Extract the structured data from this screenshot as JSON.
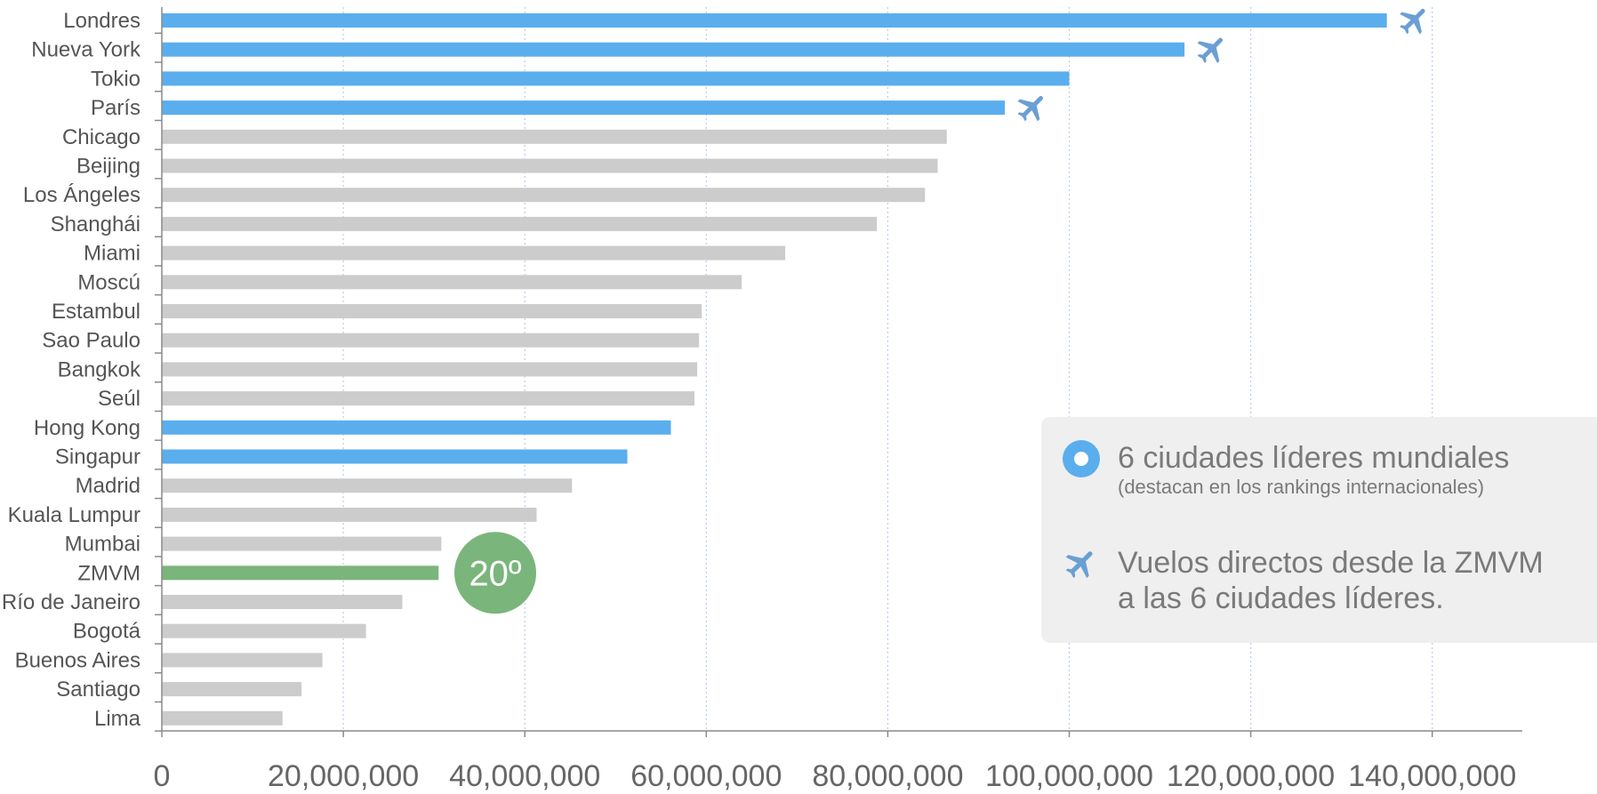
{
  "chart_data": {
    "type": "bar",
    "orientation": "horizontal",
    "categories": [
      "Londres",
      "Nueva York",
      "Tokio",
      "París",
      "Chicago",
      "Beijing",
      "Los Ángeles",
      "Shanghái",
      "Miami",
      "Moscú",
      "Estambul",
      "Sao Paulo",
      "Bangkok",
      "Seúl",
      "Hong Kong",
      "Singapur",
      "Madrid",
      "Kuala Lumpur",
      "Mumbai",
      "ZMVM",
      "Río de Janeiro",
      "Bogotá",
      "Buenos Aires",
      "Santiago",
      "Lima"
    ],
    "values": [
      135000000,
      112700000,
      100000000,
      92900000,
      86500000,
      85500000,
      84100000,
      78800000,
      68700000,
      63900000,
      59500000,
      59200000,
      59000000,
      58700000,
      56100000,
      51300000,
      45200000,
      41300000,
      30800000,
      30500000,
      26500000,
      22500000,
      17700000,
      15400000,
      13300000
    ],
    "groups": [
      "lider",
      "lider",
      "lider",
      "lider",
      "otra",
      "otra",
      "otra",
      "otra",
      "otra",
      "otra",
      "otra",
      "otra",
      "otra",
      "otra",
      "lider",
      "lider",
      "otra",
      "otra",
      "otra",
      "zmvm",
      "otra",
      "otra",
      "otra",
      "otra",
      "otra"
    ],
    "direct_flight": [
      true,
      true,
      false,
      true,
      false,
      false,
      false,
      false,
      false,
      false,
      false,
      false,
      false,
      false,
      false,
      false,
      false,
      false,
      false,
      false,
      false,
      false,
      false,
      false,
      false
    ],
    "xlim": [
      0,
      150000000
    ],
    "xticks": [
      0,
      20000000,
      40000000,
      60000000,
      80000000,
      100000000,
      120000000,
      140000000
    ],
    "xtick_labels": [
      "0",
      "20,000,000",
      "40,000,000",
      "60,000,000",
      "80,000,000",
      "100,000,000",
      "120,000,000",
      "140,000,000"
    ],
    "grid": "vertical-dotted",
    "colors": {
      "lider": "#5aaeee",
      "otra": "#cccccc",
      "zmvm": "#7ab57b",
      "plane": "#6a9fd4",
      "grid": "#b7cde6",
      "axis": "#8a8a8a"
    },
    "annotation": {
      "category": "ZMVM",
      "text": "20º"
    }
  },
  "legend": {
    "placement": "bottom-right",
    "item1_title": "6 ciudades líderes mundiales",
    "item1_subtitle": "(destacan en los rankings internacionales)",
    "item1_icon": "ring-icon",
    "item2_line1": "Vuelos directos desde la ZMVM",
    "item2_line2": "a las 6 ciudades líderes.",
    "item2_icon": "airplane-icon"
  }
}
